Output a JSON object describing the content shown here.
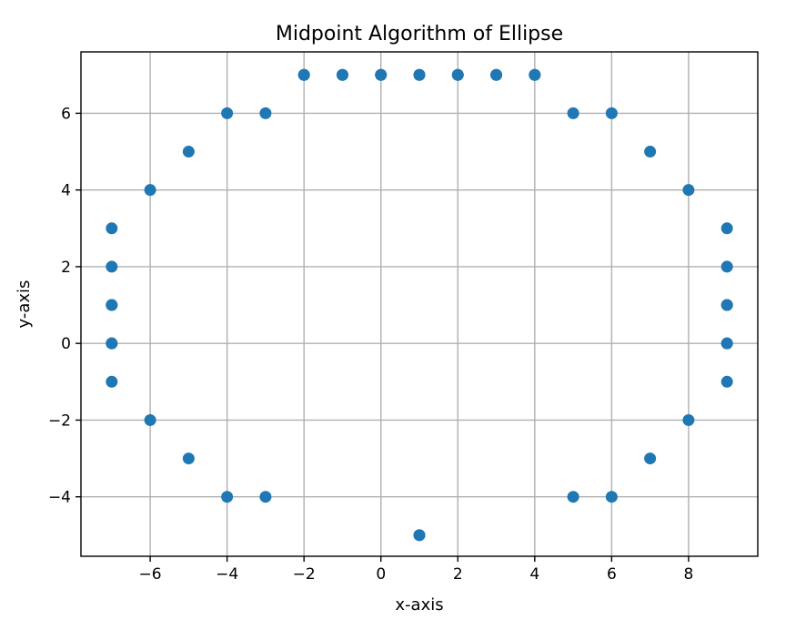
{
  "chart_data": {
    "type": "scatter",
    "title": "Midpoint Algorithm of Ellipse",
    "xlabel": "x-axis",
    "ylabel": "y-axis",
    "xlim": [
      -7.8,
      9.8
    ],
    "ylim": [
      -5.55,
      7.6
    ],
    "x_ticks": [
      -6,
      -4,
      -2,
      0,
      2,
      4,
      6,
      8
    ],
    "y_ticks": [
      -4,
      -2,
      0,
      2,
      4,
      6
    ],
    "x_tick_labels": [
      "−6",
      "−4",
      "−2",
      "0",
      "2",
      "4",
      "6",
      "8"
    ],
    "y_tick_labels": [
      "−4",
      "−2",
      "0",
      "2",
      "4",
      "6"
    ],
    "grid": true,
    "marker_color": "#1f77b4",
    "series": [
      {
        "x": [
          1,
          2,
          3,
          4,
          0,
          -1,
          -2,
          1,
          1,
          2,
          3,
          4,
          0,
          -1,
          -2,
          1,
          5,
          -3,
          5,
          -3,
          6,
          -4,
          6,
          -4,
          7,
          -5,
          7,
          -5,
          8,
          -6,
          8,
          -6,
          9,
          -7,
          9,
          -7,
          9,
          -7,
          9,
          -7,
          9,
          -7,
          9,
          -7,
          9,
          -7
        ],
        "y": [
          7,
          7,
          7,
          7,
          7,
          7,
          7,
          -5,
          7,
          7,
          7,
          7,
          7,
          7,
          7,
          -5,
          6,
          6,
          -4,
          -4,
          6,
          6,
          -4,
          -4,
          5,
          5,
          -3,
          -3,
          4,
          4,
          -2,
          -2,
          3,
          3,
          -1,
          -1,
          2,
          2,
          0,
          0,
          1,
          1,
          1,
          1,
          0,
          0
        ]
      }
    ]
  }
}
